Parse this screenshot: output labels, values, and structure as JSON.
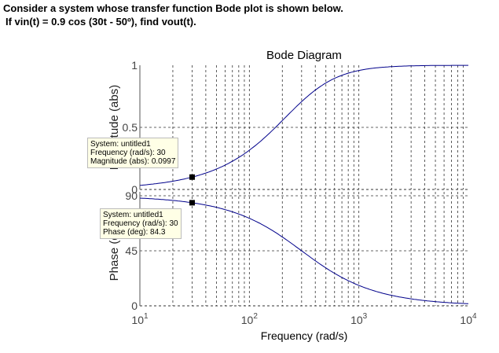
{
  "question": {
    "line1": "Consider a system whose transfer function Bode plot is shown below.",
    "line2": "If vin(t) = 0.9 cos (30t - 50º), find vout(t)."
  },
  "chart_data": [
    {
      "type": "line",
      "title": "Bode Diagram",
      "ylabel": "Magnitude (abs)",
      "xscale": "log",
      "xlim": [
        10,
        10000
      ],
      "ylim": [
        0,
        1
      ],
      "yticks": [
        "0",
        "0.5",
        "1"
      ],
      "xticks": [
        "10^1",
        "10^2",
        "10^3",
        "10^4"
      ],
      "grid": true,
      "x": [
        10,
        20,
        30,
        50,
        100,
        200,
        300,
        500,
        1000,
        2000,
        3000,
        5000,
        10000
      ],
      "y": [
        0.0333,
        0.0665,
        0.0995,
        0.164,
        0.316,
        0.555,
        0.707,
        0.857,
        0.958,
        0.989,
        0.995,
        0.998,
        1.0
      ],
      "datatip": {
        "system": "System: untitled1",
        "frequency": "Frequency (rad/s): 30",
        "value": "Magnitude (abs): 0.0997"
      },
      "marker": {
        "x": 30,
        "y": 0.0997
      }
    },
    {
      "type": "line",
      "ylabel": "Phase (deg)",
      "xlabel": "Frequency  (rad/s)",
      "xscale": "log",
      "xlim": [
        10,
        10000
      ],
      "ylim": [
        0,
        90
      ],
      "yticks": [
        "0",
        "45",
        "90"
      ],
      "xticks": [
        "10^1",
        "10^2",
        "10^3",
        "10^4"
      ],
      "grid": true,
      "x": [
        10,
        20,
        30,
        50,
        100,
        200,
        300,
        500,
        1000,
        2000,
        3000,
        5000,
        10000
      ],
      "y": [
        88.1,
        86.2,
        84.3,
        80.5,
        71.6,
        56.3,
        45.0,
        31.0,
        16.7,
        8.5,
        5.7,
        3.4,
        1.7
      ],
      "datatip": {
        "system": "System: untitled1",
        "frequency": "Frequency (rad/s): 30",
        "value": "Phase (deg): 84.3"
      },
      "marker": {
        "x": 30,
        "y": 84.3
      }
    }
  ],
  "colors": {
    "line": "#00008b",
    "tip_bg": "#ffffe6"
  }
}
